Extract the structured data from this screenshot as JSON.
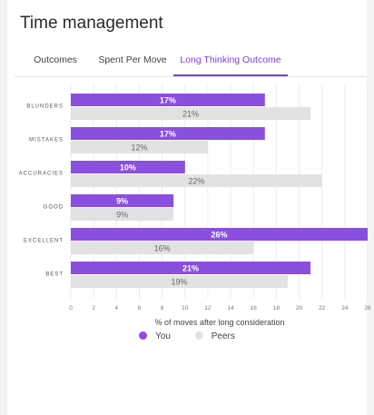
{
  "card": {
    "title": "Time management"
  },
  "tabs": [
    {
      "label": "Outcomes",
      "active": false
    },
    {
      "label": "Spent Per Move",
      "active": false
    },
    {
      "label": "Long Thinking Outcome",
      "active": true
    }
  ],
  "colors": {
    "you": "#8a4fdf",
    "peers": "#e2e2e2",
    "active_tab": "#7d3fd6"
  },
  "chart_data": {
    "type": "bar",
    "orientation": "horizontal",
    "categories": [
      "BLUNDERS",
      "MISTAKES",
      "ACCURACIES",
      "GOOD",
      "EXCELLENT",
      "BEST"
    ],
    "series": [
      {
        "name": "You",
        "values": [
          17,
          17,
          10,
          9,
          26,
          21
        ],
        "labels": [
          "17%",
          "17%",
          "10%",
          "9%",
          "26%",
          "21%"
        ]
      },
      {
        "name": "Peers",
        "values": [
          21,
          12,
          22,
          9,
          16,
          19
        ],
        "labels": [
          "21%",
          "12%",
          "22%",
          "9%",
          "16%",
          "19%"
        ]
      }
    ],
    "xticks": [
      "0",
      "2",
      "4",
      "6",
      "8",
      "10",
      "12",
      "14",
      "16",
      "18",
      "20",
      "22",
      "24",
      "26"
    ],
    "xlim": [
      0,
      26
    ],
    "xlabel": "% of moves after long consideration",
    "grid": true,
    "legend": "bottom-center"
  }
}
